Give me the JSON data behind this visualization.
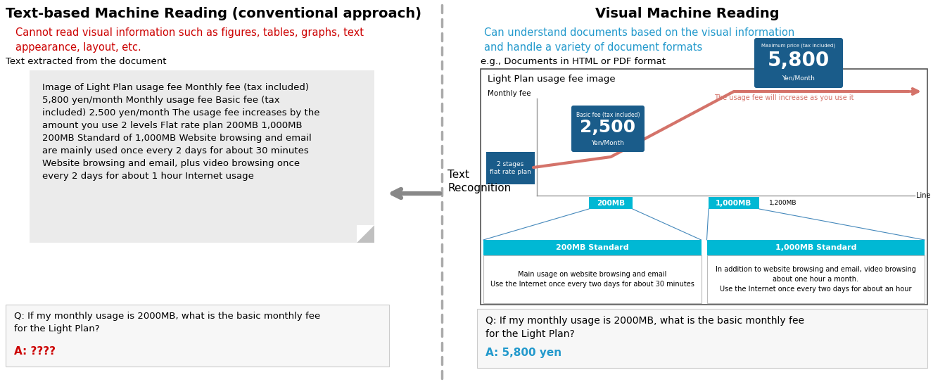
{
  "left_title": "Text-based Machine Reading (conventional approach)",
  "left_subtitle": "Cannot read visual information such as figures, tables, graphs, text\nappearance, layout, etc.",
  "left_label": "Text extracted from the document",
  "left_box_text": "Image of Light Plan usage fee Monthly fee (tax included)\n5,800 yen/month Monthly usage fee Basic fee (tax\nincluded) 2,500 yen/month The usage fee increases by the\namount you use 2 levels Flat rate plan 200MB 1,000MB\n200MB Standard of 1,000MB Website browsing and email\nare mainly used once every 2 days for about 30 minutes\nWebsite browsing and email, plus video browsing once\nevery 2 days for about 1 hour Internet usage",
  "left_qa_answer_color": "#cc0000",
  "left_subtitle_color": "#cc0000",
  "middle_label": "Text\nRecognition",
  "right_title": "Visual Machine Reading",
  "right_subtitle": "Can understand documents based on the visual information\nand handle a variety of document formats",
  "right_subtitle_color": "#2299cc",
  "right_label": "e.g., Documents in HTML or PDF format",
  "right_chart_title": "Light Plan usage fee image",
  "right_qa_answer_color": "#2299cc",
  "bg_color": "#ffffff",
  "dashed_line_color": "#aaaaaa",
  "arrow_color": "#888888",
  "chart_line_color": "#d4736a",
  "chart_dark_blue": "#1a5c8a",
  "chart_teal": "#00b8d4",
  "chart_teal_light": "#00ccee"
}
